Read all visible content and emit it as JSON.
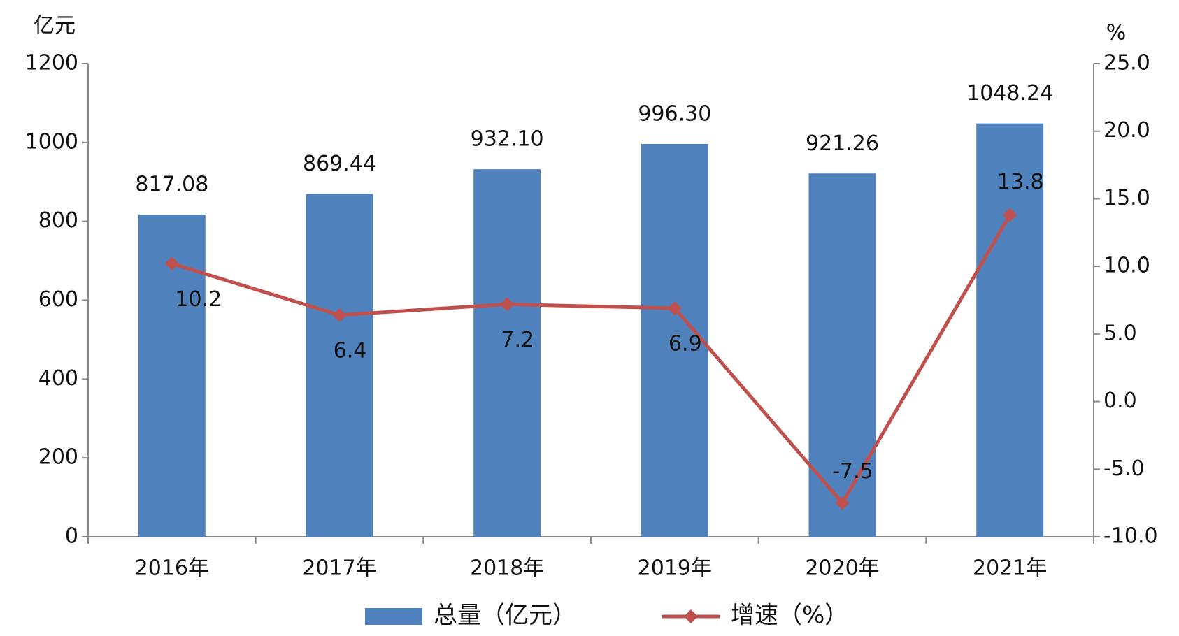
{
  "chart_data": {
    "type": "combo",
    "y_label": "亿元",
    "y2_label": "%",
    "categories": [
      "2016年",
      "2017年",
      "2018年",
      "2019年",
      "2020年",
      "2021年"
    ],
    "series": [
      {
        "name": "总量（亿元）",
        "type": "bar",
        "color": "#4f81bd",
        "values": [
          817.08,
          869.44,
          932.1,
          996.3,
          921.26,
          1048.24
        ],
        "value_labels": [
          "817.08",
          "869.44",
          "932.10",
          "996.30",
          "921.26",
          "1048.24"
        ]
      },
      {
        "name": "增速（%）",
        "type": "line",
        "axis": "y2",
        "color": "#c0504d",
        "values": [
          10.2,
          6.4,
          7.2,
          6.9,
          -7.5,
          13.8
        ]
      }
    ],
    "ylim": [
      0,
      1200
    ],
    "yticks": [
      0,
      200,
      400,
      600,
      800,
      1000,
      1200
    ],
    "y2lim": [
      -10,
      25
    ],
    "y2ticks": [
      {
        "value": -10,
        "label": "-10.0"
      },
      {
        "value": -5,
        "label": "-5.0"
      },
      {
        "value": 0,
        "label": "0.0"
      },
      {
        "value": 5,
        "label": "5.0"
      },
      {
        "value": 10,
        "label": "10.0"
      },
      {
        "value": 15,
        "label": "15.0"
      },
      {
        "value": 20,
        "label": "20.0"
      },
      {
        "value": 25,
        "label": "25.0"
      }
    ],
    "grid": false
  }
}
